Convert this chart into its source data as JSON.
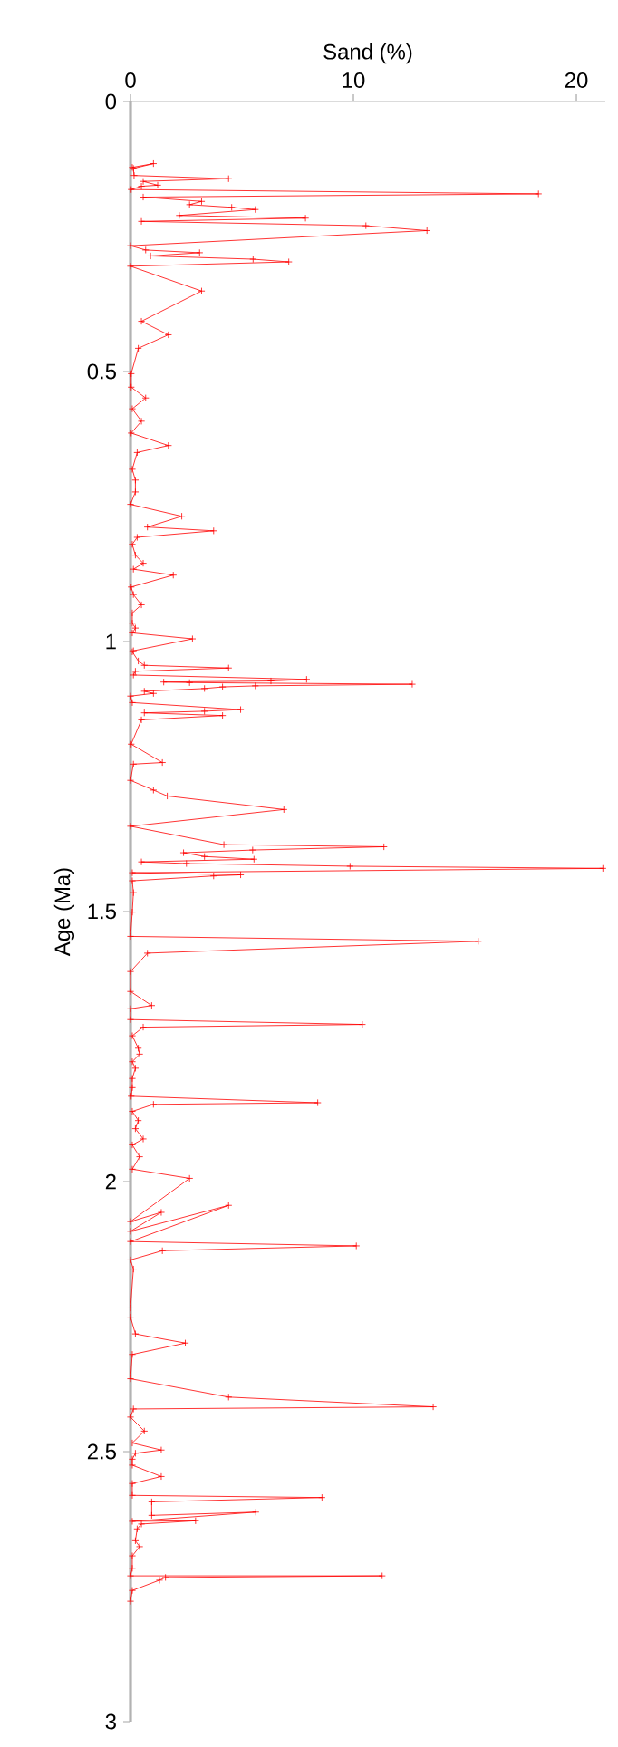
{
  "chart_data": {
    "type": "line",
    "xlabel": "Sand (%)",
    "ylabel": "Age (Ma)",
    "xlim": [
      0,
      21.3
    ],
    "xticks": [
      0,
      10,
      20
    ],
    "ylim": [
      3,
      0
    ],
    "yticks": [
      0,
      0.5,
      1,
      1.5,
      2,
      2.5,
      3
    ],
    "marker": "cross",
    "line_style": "solid",
    "series": [
      {
        "color": "#ff0000",
        "x": [
          0.08,
          1.03,
          0.13,
          0.16,
          4.4,
          0.57,
          1.22,
          0.49,
          0.03,
          18.3,
          0.57,
          3.19,
          2.65,
          4.54,
          5.6,
          2.19,
          7.85,
          0.49,
          10.56,
          13.3,
          0,
          0.68,
          3.1,
          0.9,
          5.5,
          7.1,
          0,
          3.19,
          0.49,
          1.7,
          0.35,
          0.03,
          0.03,
          0.68,
          0.08,
          0.49,
          0.03,
          1.7,
          0.3,
          0.08,
          0.22,
          0.22,
          0,
          2.3,
          0.76,
          3.73,
          0.3,
          0.08,
          0.22,
          0.57,
          0.13,
          1.92,
          0.03,
          0.13,
          0.49,
          0.08,
          0.08,
          0.22,
          0.08,
          2.78,
          0.13,
          0.08,
          0.35,
          0.62,
          4.4,
          0.22,
          0.13,
          7.9,
          6.3,
          1.49,
          2.65,
          12.64,
          5.6,
          4.13,
          3.32,
          0.62,
          1.03,
          0,
          0.08,
          4.94,
          3.32,
          0.62,
          4.13,
          0.49,
          0.03,
          1.43,
          0.13,
          0,
          1.03,
          1.65,
          6.88,
          0,
          4.19,
          11.37,
          5.48,
          2.38,
          3.32,
          5.54,
          0.49,
          2.51,
          9.85,
          21.19,
          0.08,
          4.94,
          3.73,
          0.08,
          0.13,
          0.08,
          0,
          15.6,
          0.76,
          0,
          0,
          0.95,
          0,
          0,
          10.4,
          0.57,
          0.08,
          0.35,
          0.41,
          0.08,
          0.22,
          0.08,
          0.08,
          0.03,
          8.4,
          1.03,
          0.08,
          0.35,
          0.22,
          0.57,
          0.08,
          0.41,
          0.08,
          2.65,
          0,
          1.38,
          0,
          4.4,
          0,
          10.13,
          1.43,
          0,
          0.13,
          0,
          0,
          0.22,
          2.46,
          0.08,
          0,
          4.4,
          13.58,
          0.13,
          0,
          0.62,
          0.08,
          1.38,
          0.22,
          0.08,
          0.08,
          1.38,
          0.08,
          0.08,
          8.59,
          0.95,
          0.95,
          5.62,
          0.08,
          2.92,
          0.49,
          0.3,
          0.22,
          0.41,
          0.08,
          0.08,
          0,
          11.29,
          1.57,
          1.3,
          0.08,
          0
        ],
        "values": [
          0.122,
          0.115,
          0.124,
          0.137,
          0.143,
          0.148,
          0.155,
          0.157,
          0.163,
          0.171,
          0.177,
          0.185,
          0.191,
          0.196,
          0.2,
          0.211,
          0.216,
          0.222,
          0.23,
          0.239,
          0.267,
          0.275,
          0.28,
          0.286,
          0.292,
          0.297,
          0.305,
          0.351,
          0.407,
          0.432,
          0.457,
          0.504,
          0.529,
          0.549,
          0.569,
          0.592,
          0.614,
          0.637,
          0.65,
          0.681,
          0.701,
          0.723,
          0.746,
          0.768,
          0.788,
          0.795,
          0.807,
          0.82,
          0.84,
          0.855,
          0.866,
          0.877,
          0.899,
          0.913,
          0.932,
          0.947,
          0.966,
          0.975,
          0.984,
          0.995,
          1.017,
          1.019,
          1.036,
          1.044,
          1.049,
          1.055,
          1.062,
          1.07,
          1.073,
          1.075,
          1.076,
          1.079,
          1.082,
          1.084,
          1.087,
          1.092,
          1.096,
          1.101,
          1.113,
          1.126,
          1.129,
          1.132,
          1.137,
          1.145,
          1.19,
          1.224,
          1.227,
          1.257,
          1.275,
          1.286,
          1.311,
          1.342,
          1.376,
          1.38,
          1.386,
          1.391,
          1.398,
          1.403,
          1.408,
          1.411,
          1.416,
          1.42,
          1.428,
          1.432,
          1.434,
          1.443,
          1.465,
          1.501,
          1.546,
          1.555,
          1.577,
          1.611,
          1.648,
          1.674,
          1.68,
          1.7,
          1.709,
          1.714,
          1.73,
          1.753,
          1.764,
          1.778,
          1.79,
          1.809,
          1.826,
          1.842,
          1.854,
          1.857,
          1.87,
          1.887,
          1.902,
          1.921,
          1.932,
          1.954,
          1.977,
          1.994,
          2.074,
          2.057,
          2.092,
          2.044,
          2.111,
          2.119,
          2.128,
          2.145,
          2.162,
          2.234,
          2.251,
          2.282,
          2.299,
          2.32,
          2.365,
          2.399,
          2.417,
          2.421,
          2.436,
          2.462,
          2.484,
          2.497,
          2.503,
          2.514,
          2.525,
          2.546,
          2.559,
          2.581,
          2.585,
          2.593,
          2.618,
          2.612,
          2.629,
          2.628,
          2.634,
          2.643,
          2.665,
          2.676,
          2.693,
          2.716,
          2.73,
          2.73,
          2.733,
          2.738,
          2.757,
          2.777
        ]
      }
    ]
  }
}
